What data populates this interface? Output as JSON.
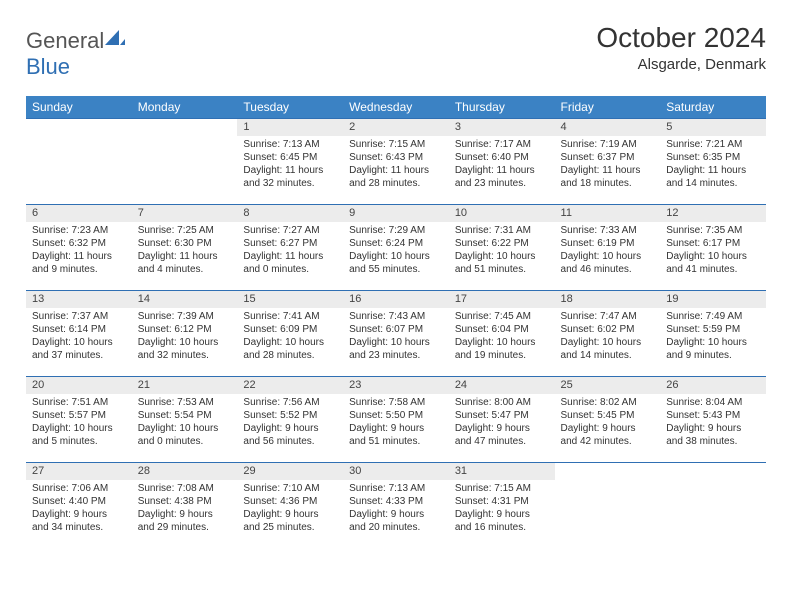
{
  "brand": {
    "part1": "General",
    "part2": "Blue"
  },
  "title": "October 2024",
  "location": "Alsgarde, Denmark",
  "header_bg": "#3b82c4",
  "border_color": "#2f6fb3",
  "daynum_bg": "#ececec",
  "weekdays": [
    "Sunday",
    "Monday",
    "Tuesday",
    "Wednesday",
    "Thursday",
    "Friday",
    "Saturday"
  ],
  "weeks": [
    [
      null,
      null,
      {
        "n": "1",
        "sr": "Sunrise: 7:13 AM",
        "ss": "Sunset: 6:45 PM",
        "dl": "Daylight: 11 hours and 32 minutes."
      },
      {
        "n": "2",
        "sr": "Sunrise: 7:15 AM",
        "ss": "Sunset: 6:43 PM",
        "dl": "Daylight: 11 hours and 28 minutes."
      },
      {
        "n": "3",
        "sr": "Sunrise: 7:17 AM",
        "ss": "Sunset: 6:40 PM",
        "dl": "Daylight: 11 hours and 23 minutes."
      },
      {
        "n": "4",
        "sr": "Sunrise: 7:19 AM",
        "ss": "Sunset: 6:37 PM",
        "dl": "Daylight: 11 hours and 18 minutes."
      },
      {
        "n": "5",
        "sr": "Sunrise: 7:21 AM",
        "ss": "Sunset: 6:35 PM",
        "dl": "Daylight: 11 hours and 14 minutes."
      }
    ],
    [
      {
        "n": "6",
        "sr": "Sunrise: 7:23 AM",
        "ss": "Sunset: 6:32 PM",
        "dl": "Daylight: 11 hours and 9 minutes."
      },
      {
        "n": "7",
        "sr": "Sunrise: 7:25 AM",
        "ss": "Sunset: 6:30 PM",
        "dl": "Daylight: 11 hours and 4 minutes."
      },
      {
        "n": "8",
        "sr": "Sunrise: 7:27 AM",
        "ss": "Sunset: 6:27 PM",
        "dl": "Daylight: 11 hours and 0 minutes."
      },
      {
        "n": "9",
        "sr": "Sunrise: 7:29 AM",
        "ss": "Sunset: 6:24 PM",
        "dl": "Daylight: 10 hours and 55 minutes."
      },
      {
        "n": "10",
        "sr": "Sunrise: 7:31 AM",
        "ss": "Sunset: 6:22 PM",
        "dl": "Daylight: 10 hours and 51 minutes."
      },
      {
        "n": "11",
        "sr": "Sunrise: 7:33 AM",
        "ss": "Sunset: 6:19 PM",
        "dl": "Daylight: 10 hours and 46 minutes."
      },
      {
        "n": "12",
        "sr": "Sunrise: 7:35 AM",
        "ss": "Sunset: 6:17 PM",
        "dl": "Daylight: 10 hours and 41 minutes."
      }
    ],
    [
      {
        "n": "13",
        "sr": "Sunrise: 7:37 AM",
        "ss": "Sunset: 6:14 PM",
        "dl": "Daylight: 10 hours and 37 minutes."
      },
      {
        "n": "14",
        "sr": "Sunrise: 7:39 AM",
        "ss": "Sunset: 6:12 PM",
        "dl": "Daylight: 10 hours and 32 minutes."
      },
      {
        "n": "15",
        "sr": "Sunrise: 7:41 AM",
        "ss": "Sunset: 6:09 PM",
        "dl": "Daylight: 10 hours and 28 minutes."
      },
      {
        "n": "16",
        "sr": "Sunrise: 7:43 AM",
        "ss": "Sunset: 6:07 PM",
        "dl": "Daylight: 10 hours and 23 minutes."
      },
      {
        "n": "17",
        "sr": "Sunrise: 7:45 AM",
        "ss": "Sunset: 6:04 PM",
        "dl": "Daylight: 10 hours and 19 minutes."
      },
      {
        "n": "18",
        "sr": "Sunrise: 7:47 AM",
        "ss": "Sunset: 6:02 PM",
        "dl": "Daylight: 10 hours and 14 minutes."
      },
      {
        "n": "19",
        "sr": "Sunrise: 7:49 AM",
        "ss": "Sunset: 5:59 PM",
        "dl": "Daylight: 10 hours and 9 minutes."
      }
    ],
    [
      {
        "n": "20",
        "sr": "Sunrise: 7:51 AM",
        "ss": "Sunset: 5:57 PM",
        "dl": "Daylight: 10 hours and 5 minutes."
      },
      {
        "n": "21",
        "sr": "Sunrise: 7:53 AM",
        "ss": "Sunset: 5:54 PM",
        "dl": "Daylight: 10 hours and 0 minutes."
      },
      {
        "n": "22",
        "sr": "Sunrise: 7:56 AM",
        "ss": "Sunset: 5:52 PM",
        "dl": "Daylight: 9 hours and 56 minutes."
      },
      {
        "n": "23",
        "sr": "Sunrise: 7:58 AM",
        "ss": "Sunset: 5:50 PM",
        "dl": "Daylight: 9 hours and 51 minutes."
      },
      {
        "n": "24",
        "sr": "Sunrise: 8:00 AM",
        "ss": "Sunset: 5:47 PM",
        "dl": "Daylight: 9 hours and 47 minutes."
      },
      {
        "n": "25",
        "sr": "Sunrise: 8:02 AM",
        "ss": "Sunset: 5:45 PM",
        "dl": "Daylight: 9 hours and 42 minutes."
      },
      {
        "n": "26",
        "sr": "Sunrise: 8:04 AM",
        "ss": "Sunset: 5:43 PM",
        "dl": "Daylight: 9 hours and 38 minutes."
      }
    ],
    [
      {
        "n": "27",
        "sr": "Sunrise: 7:06 AM",
        "ss": "Sunset: 4:40 PM",
        "dl": "Daylight: 9 hours and 34 minutes."
      },
      {
        "n": "28",
        "sr": "Sunrise: 7:08 AM",
        "ss": "Sunset: 4:38 PM",
        "dl": "Daylight: 9 hours and 29 minutes."
      },
      {
        "n": "29",
        "sr": "Sunrise: 7:10 AM",
        "ss": "Sunset: 4:36 PM",
        "dl": "Daylight: 9 hours and 25 minutes."
      },
      {
        "n": "30",
        "sr": "Sunrise: 7:13 AM",
        "ss": "Sunset: 4:33 PM",
        "dl": "Daylight: 9 hours and 20 minutes."
      },
      {
        "n": "31",
        "sr": "Sunrise: 7:15 AM",
        "ss": "Sunset: 4:31 PM",
        "dl": "Daylight: 9 hours and 16 minutes."
      },
      null,
      null
    ]
  ]
}
